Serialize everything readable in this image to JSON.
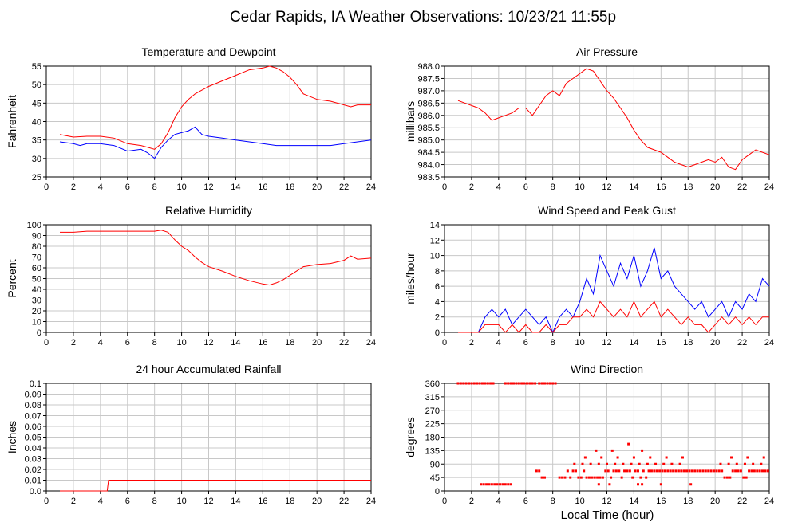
{
  "page_title": "Cedar Rapids, IA Weather Observations: 10/23/21 11:55p",
  "bottom_xlabel": "Local Time (hour)",
  "colors": {
    "red": "#ff0000",
    "blue": "#0000ff",
    "grid": "#c8c8c8",
    "axis": "#000000"
  },
  "chart_data": [
    {
      "id": "temp",
      "type": "line",
      "title": "Temperature and Dewpoint",
      "ylabel": "Fahrenheit",
      "xlim": [
        0,
        24
      ],
      "ylim": [
        25,
        55
      ],
      "xticks": [
        0,
        2,
        4,
        6,
        8,
        10,
        12,
        14,
        16,
        18,
        20,
        22,
        24
      ],
      "yticks": [
        25,
        30,
        35,
        40,
        45,
        50,
        55
      ],
      "grid": true,
      "series": [
        {
          "color": "#ff0000",
          "x": [
            1,
            2,
            3,
            4,
            5,
            6,
            7,
            7.5,
            8,
            8.5,
            9,
            9.5,
            10,
            10.5,
            11,
            11.5,
            12,
            13,
            14,
            15,
            16,
            16.5,
            17,
            17.5,
            18,
            18.5,
            19,
            20,
            21,
            22,
            22.5,
            23,
            24
          ],
          "y": [
            36.5,
            35.8,
            36,
            36,
            35.5,
            34,
            33.5,
            33,
            32.5,
            34,
            37,
            41,
            44,
            46,
            47.5,
            48.5,
            49.5,
            51,
            52.5,
            54,
            54.5,
            55,
            54.5,
            53.5,
            52,
            50,
            47.5,
            46,
            45.5,
            44.5,
            44,
            44.5,
            44.5
          ]
        },
        {
          "color": "#0000ff",
          "x": [
            1,
            2,
            2.5,
            3,
            4,
            5,
            6,
            7,
            7.5,
            8,
            8.5,
            9,
            9.5,
            10,
            10.5,
            11,
            11.5,
            12,
            13,
            14,
            15,
            16,
            17,
            18,
            19,
            20,
            21,
            22,
            23,
            24
          ],
          "y": [
            34.5,
            34,
            33.5,
            34,
            34,
            33.5,
            32,
            32.5,
            31.5,
            30,
            33,
            35,
            36.5,
            37,
            37.5,
            38.5,
            36.5,
            36,
            35.5,
            35,
            34.5,
            34,
            33.5,
            33.5,
            33.5,
            33.5,
            33.5,
            34,
            34.5,
            35
          ]
        }
      ]
    },
    {
      "id": "pressure",
      "type": "line",
      "title": "Air Pressure",
      "ylabel": "millibars",
      "xlim": [
        0,
        24
      ],
      "ylim": [
        983.5,
        988.0
      ],
      "xticks": [
        0,
        2,
        4,
        6,
        8,
        10,
        12,
        14,
        16,
        18,
        20,
        22,
        24
      ],
      "yticks": [
        "983.5",
        "984.0",
        "984.5",
        "985.0",
        "985.5",
        "986.0",
        "986.5",
        "987.0",
        "987.5",
        "988.0"
      ],
      "grid": true,
      "series": [
        {
          "color": "#ff0000",
          "x": [
            1,
            1.5,
            2,
            2.5,
            3,
            3.5,
            4,
            4.5,
            5,
            5.5,
            6,
            6.5,
            7,
            7.5,
            8,
            8.5,
            9,
            9.5,
            10,
            10.5,
            11,
            11.5,
            12,
            12.5,
            13,
            13.5,
            14,
            14.5,
            15,
            15.5,
            16,
            16.5,
            17,
            17.5,
            18,
            18.5,
            19,
            19.5,
            20,
            20.5,
            21,
            21.5,
            22,
            22.5,
            23,
            23.5,
            24
          ],
          "y": [
            986.6,
            986.5,
            986.4,
            986.3,
            986.1,
            985.8,
            985.9,
            986.0,
            986.1,
            986.3,
            986.3,
            986.0,
            986.4,
            986.8,
            987.0,
            986.8,
            987.3,
            987.5,
            987.7,
            987.9,
            987.8,
            987.4,
            987.0,
            986.7,
            986.3,
            985.9,
            985.4,
            985.0,
            984.7,
            984.6,
            984.5,
            984.3,
            984.1,
            984.0,
            983.9,
            984.0,
            984.1,
            984.2,
            984.1,
            984.3,
            983.9,
            983.8,
            984.2,
            984.4,
            984.6,
            984.5,
            984.4
          ]
        }
      ]
    },
    {
      "id": "rh",
      "type": "line",
      "title": "Relative Humidity",
      "ylabel": "Percent",
      "xlim": [
        0,
        24
      ],
      "ylim": [
        0,
        100
      ],
      "xticks": [
        0,
        2,
        4,
        6,
        8,
        10,
        12,
        14,
        16,
        18,
        20,
        22,
        24
      ],
      "yticks": [
        0,
        10,
        20,
        30,
        40,
        50,
        60,
        70,
        80,
        90,
        100
      ],
      "grid": true,
      "series": [
        {
          "color": "#ff0000",
          "x": [
            1,
            2,
            3,
            4,
            5,
            6,
            7,
            8,
            8.5,
            9,
            9.5,
            10,
            10.5,
            11,
            11.5,
            12,
            13,
            14,
            15,
            16,
            16.5,
            17,
            17.5,
            18,
            19,
            20,
            21,
            22,
            22.5,
            23,
            24
          ],
          "y": [
            93,
            93,
            94,
            94,
            94,
            94,
            94,
            94,
            95,
            93,
            86,
            80,
            76,
            70,
            65,
            61,
            57,
            52,
            48,
            45,
            44,
            46,
            49,
            53,
            61,
            63,
            64,
            67,
            71,
            68,
            69
          ]
        }
      ]
    },
    {
      "id": "wind",
      "type": "line",
      "title": "Wind Speed and Peak Gust",
      "ylabel": "miles/hour",
      "xlim": [
        0,
        24
      ],
      "ylim": [
        0,
        14
      ],
      "xticks": [
        0,
        2,
        4,
        6,
        8,
        10,
        12,
        14,
        16,
        18,
        20,
        22,
        24
      ],
      "yticks": [
        0,
        2,
        4,
        6,
        8,
        10,
        12,
        14
      ],
      "grid": true,
      "series": [
        {
          "color": "#0000ff",
          "x": [
            1,
            2,
            2.5,
            3,
            3.5,
            4,
            4.5,
            5,
            5.5,
            6,
            6.5,
            7,
            7.5,
            8,
            8.5,
            9,
            9.5,
            10,
            10.5,
            11,
            11.5,
            12,
            12.5,
            13,
            13.5,
            14,
            14.5,
            15,
            15.5,
            16,
            16.5,
            17,
            17.5,
            18,
            18.5,
            19,
            19.5,
            20,
            20.5,
            21,
            21.5,
            22,
            22.5,
            23,
            23.5,
            24
          ],
          "y": [
            0,
            0,
            0,
            2,
            3,
            2,
            3,
            1,
            2,
            3,
            2,
            1,
            2,
            0,
            2,
            3,
            2,
            4,
            7,
            5,
            10,
            8,
            6,
            9,
            7,
            10,
            6,
            8,
            11,
            7,
            8,
            6,
            5,
            4,
            3,
            4,
            2,
            3,
            4,
            2,
            4,
            3,
            5,
            4,
            7,
            6
          ]
        },
        {
          "color": "#ff0000",
          "x": [
            1,
            2,
            2.5,
            3,
            3.5,
            4,
            4.5,
            5,
            5.5,
            6,
            6.5,
            7,
            7.5,
            8,
            8.5,
            9,
            9.5,
            10,
            10.5,
            11,
            11.5,
            12,
            12.5,
            13,
            13.5,
            14,
            14.5,
            15,
            15.5,
            16,
            16.5,
            17,
            17.5,
            18,
            18.5,
            19,
            19.5,
            20,
            20.5,
            21,
            21.5,
            22,
            22.5,
            23,
            23.5,
            24
          ],
          "y": [
            0,
            0,
            0,
            1,
            1,
            1,
            0,
            1,
            0,
            1,
            0,
            0,
            1,
            0,
            1,
            1,
            2,
            2,
            3,
            2,
            4,
            3,
            2,
            3,
            2,
            4,
            2,
            3,
            4,
            2,
            3,
            2,
            1,
            2,
            1,
            1,
            0,
            1,
            2,
            1,
            2,
            1,
            2,
            1,
            2,
            2
          ]
        }
      ]
    },
    {
      "id": "rain",
      "type": "line",
      "title": "24 hour Accumulated Rainfall",
      "ylabel": "Inches",
      "xlim": [
        0,
        24
      ],
      "ylim": [
        0,
        0.1
      ],
      "xticks": [
        0,
        2,
        4,
        6,
        8,
        10,
        12,
        14,
        16,
        18,
        20,
        22,
        24
      ],
      "yticks": [
        "0.0",
        "0.01",
        "0.02",
        "0.03",
        "0.04",
        "0.05",
        "0.06",
        "0.07",
        "0.08",
        "0.09",
        "0.1"
      ],
      "grid": true,
      "series": [
        {
          "color": "#ff0000",
          "x": [
            1,
            4.5,
            4.6,
            24
          ],
          "y": [
            0,
            0,
            0.01,
            0.01
          ]
        }
      ]
    },
    {
      "id": "wdir",
      "type": "scatter",
      "title": "Wind Direction",
      "ylabel": "degrees",
      "xlim": [
        0,
        24
      ],
      "ylim": [
        0,
        360
      ],
      "xticks": [
        0,
        2,
        4,
        6,
        8,
        10,
        12,
        14,
        16,
        18,
        20,
        22,
        24
      ],
      "yticks": [
        0,
        45,
        90,
        135,
        180,
        225,
        270,
        315,
        360
      ],
      "grid": true,
      "series": [
        {
          "color": "#ff0000",
          "x": [
            1.0,
            1.2,
            1.4,
            1.6,
            1.8,
            2.0,
            2.2,
            2.4,
            2.6,
            2.8,
            3.0,
            3.2,
            3.4,
            3.6,
            4.5,
            4.7,
            4.9,
            5.1,
            5.3,
            5.5,
            5.7,
            5.9,
            6.1,
            6.3,
            6.5,
            6.7,
            7.0,
            7.2,
            7.4,
            7.6,
            7.8,
            8.0,
            8.2,
            2.7,
            2.9,
            3.1,
            3.3,
            3.5,
            3.7,
            3.9,
            4.1,
            4.3,
            4.5,
            4.7,
            4.9,
            6.8,
            7.0,
            7.2,
            7.4,
            8.5,
            8.7,
            8.9,
            9.1,
            9.3,
            9.5,
            9.7,
            9.9,
            10.1,
            10.3,
            10.5,
            10.7,
            10.9,
            11.1,
            11.3,
            11.5,
            11.7,
            11.9,
            12.1,
            12.3,
            12.5,
            12.7,
            12.9,
            13.1,
            13.3,
            13.5,
            13.7,
            13.9,
            14.1,
            14.3,
            14.5,
            14.7,
            14.9,
            15.1,
            15.3,
            15.5,
            15.7,
            15.9,
            16.1,
            16.3,
            16.5,
            16.7,
            16.9,
            17.1,
            17.3,
            17.5,
            17.7,
            17.9,
            18.1,
            18.3,
            18.5,
            18.7,
            18.9,
            19.1,
            19.3,
            19.5,
            19.7,
            19.9,
            20.1,
            20.3,
            20.5,
            20.7,
            20.9,
            21.1,
            21.3,
            21.5,
            21.7,
            21.9,
            22.1,
            22.3,
            22.5,
            22.7,
            22.9,
            23.1,
            23.3,
            23.5,
            23.7,
            23.9,
            9.6,
            10.2,
            10.8,
            11.4,
            12.0,
            12.6,
            13.2,
            13.8,
            14.4,
            15.0,
            15.6,
            16.2,
            16.8,
            17.4,
            20.4,
            21.0,
            21.6,
            22.2,
            22.8,
            23.4,
            10.4,
            11.6,
            12.8,
            14.0,
            15.2,
            16.4,
            17.6,
            21.2,
            22.4,
            23.6,
            11.2,
            12.4,
            14.6,
            13.6,
            16.0,
            18.2,
            14.3,
            14.6,
            11.4,
            12.2
          ],
          "y": [
            360,
            360,
            360,
            360,
            360,
            360,
            360,
            360,
            360,
            360,
            360,
            360,
            360,
            360,
            360,
            360,
            360,
            360,
            360,
            360,
            360,
            360,
            360,
            360,
            360,
            360,
            360,
            360,
            360,
            360,
            360,
            360,
            360,
            22,
            22,
            22,
            22,
            22,
            22,
            22,
            22,
            22,
            22,
            22,
            22,
            67,
            67,
            45,
            45,
            45,
            45,
            45,
            67,
            45,
            67,
            67,
            45,
            45,
            67,
            45,
            45,
            45,
            45,
            45,
            45,
            45,
            67,
            67,
            45,
            67,
            67,
            67,
            45,
            67,
            67,
            67,
            45,
            67,
            67,
            45,
            67,
            45,
            67,
            67,
            67,
            67,
            67,
            67,
            67,
            67,
            67,
            67,
            67,
            67,
            67,
            67,
            67,
            67,
            67,
            67,
            67,
            67,
            67,
            67,
            67,
            67,
            67,
            67,
            67,
            67,
            45,
            45,
            45,
            67,
            67,
            67,
            67,
            45,
            45,
            67,
            67,
            67,
            67,
            67,
            67,
            67,
            67,
            90,
            90,
            90,
            90,
            90,
            90,
            90,
            90,
            90,
            90,
            90,
            90,
            90,
            90,
            90,
            90,
            90,
            90,
            90,
            90,
            112,
            112,
            112,
            112,
            112,
            112,
            112,
            112,
            112,
            112,
            135,
            135,
            135,
            157,
            22,
            22,
            22,
            22,
            22,
            22
          ]
        }
      ]
    }
  ]
}
